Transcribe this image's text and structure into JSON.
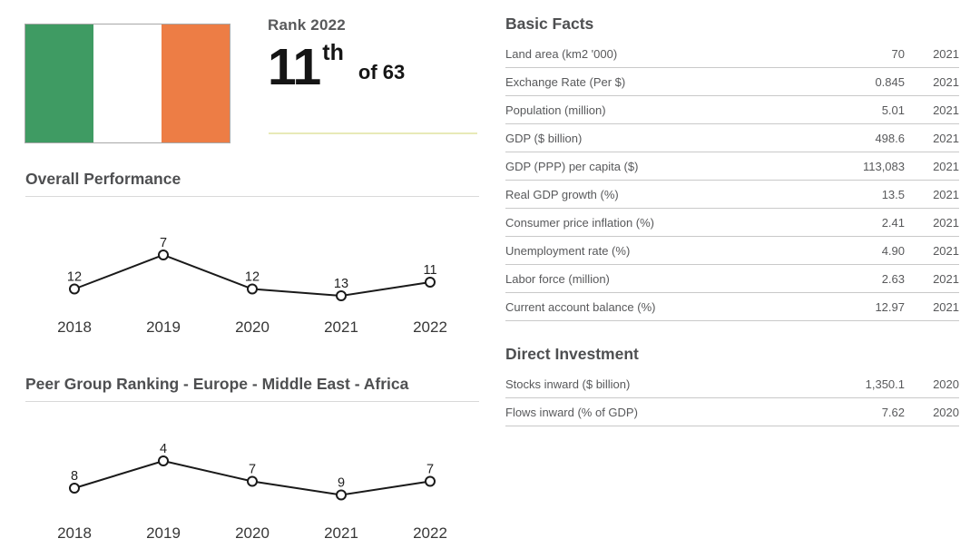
{
  "header": {
    "flag": {
      "name": "ireland-flag",
      "stripe_colors": [
        "#3f9b63",
        "#ffffff",
        "#ed7d45"
      ]
    },
    "rank_label": "Rank 2022",
    "rank_value": "11",
    "rank_ordinal_suffix": "th",
    "rank_of_label": "of 63"
  },
  "chart_data": [
    {
      "type": "line",
      "title": "Overall Performance",
      "x": [
        "2018",
        "2019",
        "2020",
        "2021",
        "2022"
      ],
      "values": [
        12,
        7,
        12,
        13,
        11
      ],
      "point_labels": [
        "12",
        "7",
        "12",
        "13",
        "11"
      ],
      "y_inverted": true,
      "y_meaning": "rank (lower is better, plotted higher)",
      "line_color": "#1a1a1a",
      "marker": "open-circle",
      "grid": false,
      "legend": "none"
    },
    {
      "type": "line",
      "title": "Peer Group Ranking - Europe - Middle East - Africa",
      "x": [
        "2018",
        "2019",
        "2020",
        "2021",
        "2022"
      ],
      "values": [
        8,
        4,
        7,
        9,
        7
      ],
      "point_labels": [
        "8",
        "4",
        "7",
        "9",
        "7"
      ],
      "y_inverted": true,
      "y_meaning": "rank (lower is better, plotted higher)",
      "line_color": "#1a1a1a",
      "marker": "open-circle",
      "grid": false,
      "legend": "none"
    }
  ],
  "basic_facts": {
    "title": "Basic Facts",
    "rows": [
      {
        "label": "Land area (km2 '000)",
        "value": "70",
        "year": "2021"
      },
      {
        "label": "Exchange Rate (Per $)",
        "value": "0.845",
        "year": "2021"
      },
      {
        "label": "Population (million)",
        "value": "5.01",
        "year": "2021"
      },
      {
        "label": "GDP ($ billion)",
        "value": "498.6",
        "year": "2021"
      },
      {
        "label": "GDP (PPP) per capita ($)",
        "value": "113,083",
        "year": "2021"
      },
      {
        "label": "Real GDP growth (%)",
        "value": "13.5",
        "year": "2021"
      },
      {
        "label": "Consumer price inflation (%)",
        "value": "2.41",
        "year": "2021"
      },
      {
        "label": "Unemployment rate (%)",
        "value": "4.90",
        "year": "2021"
      },
      {
        "label": "Labor force (million)",
        "value": "2.63",
        "year": "2021"
      },
      {
        "label": "Current account balance (%)",
        "value": "12.97",
        "year": "2021"
      }
    ]
  },
  "direct_investment": {
    "title": "Direct Investment",
    "rows": [
      {
        "label": "Stocks inward ($ billion)",
        "value": "1,350.1",
        "year": "2020"
      },
      {
        "label": "Flows inward (% of GDP)",
        "value": "7.62",
        "year": "2020"
      }
    ]
  },
  "colors": {
    "accent_divider": "#e8eab8",
    "row_border": "#c9c9c9",
    "heading_underline": "#d9d9d9",
    "heading_text": "#4e4f51",
    "body_text": "#58595b",
    "chart_line": "#1a1a1a"
  }
}
